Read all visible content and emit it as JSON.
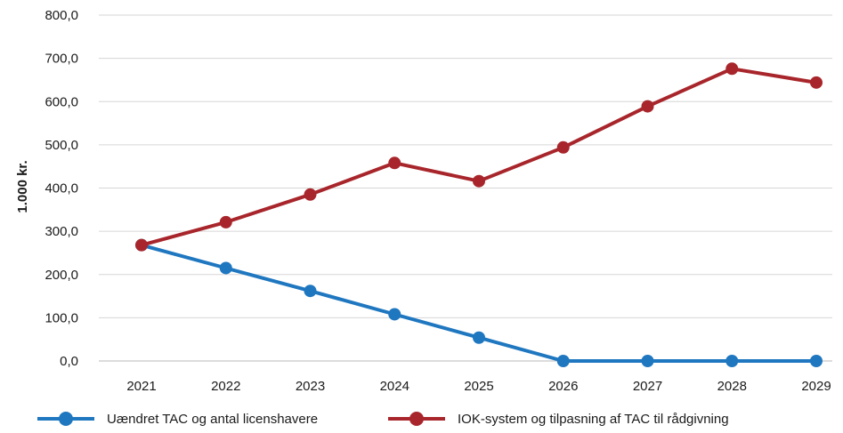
{
  "chart_data": {
    "type": "line",
    "categories": [
      "2021",
      "2022",
      "2023",
      "2024",
      "2025",
      "2026",
      "2027",
      "2028",
      "2029"
    ],
    "ylabel": "1.000 kr.",
    "ylim": [
      0,
      800
    ],
    "yticks": [
      "0,0",
      "100,0",
      "200,0",
      "300,0",
      "400,0",
      "500,0",
      "600,0",
      "700,0",
      "800,0"
    ],
    "grid": true,
    "legend_position": "bottom",
    "series": [
      {
        "name": "Uændret TAC og antal licenshavere",
        "color": "#1f77c0",
        "values": [
          268,
          215,
          162,
          108,
          54,
          0,
          0,
          0,
          0
        ]
      },
      {
        "name": "IOK-system og tilpasning af TAC til rådgivning",
        "color": "#a8262b",
        "values": [
          268,
          321,
          385,
          458,
          416,
          494,
          589,
          676,
          644
        ]
      }
    ]
  }
}
